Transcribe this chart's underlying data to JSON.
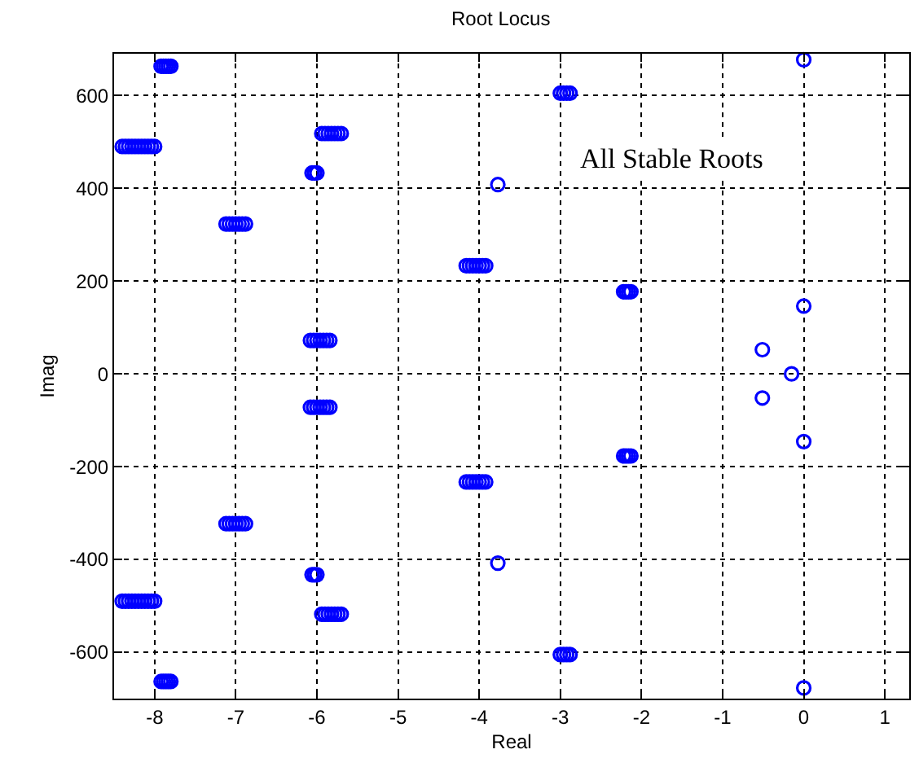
{
  "chart_data": {
    "type": "scatter",
    "title": "Root Locus",
    "xlabel": "Real",
    "ylabel": "Imag",
    "x": [
      -8.4,
      -8.36,
      -8.32,
      -8.28,
      -8.24,
      -8.2,
      -8.16,
      -8.12,
      -8.08,
      -8.04,
      -8.0,
      -7.92,
      -7.89,
      -7.86,
      -7.83,
      -7.8,
      -7.12,
      -7.08,
      -7.04,
      -7.0,
      -6.96,
      -6.92,
      -6.88,
      -6.06,
      -6.03,
      -6.0,
      -5.94,
      -5.9,
      -5.86,
      -5.82,
      -5.78,
      -5.74,
      -5.7,
      -6.08,
      -6.04,
      -6.0,
      -5.96,
      -5.92,
      -5.88,
      -5.84,
      -4.16,
      -4.12,
      -4.08,
      -4.04,
      -4.0,
      -3.96,
      -3.92,
      -3.77,
      -2.22,
      -2.19,
      -2.16,
      -2.13,
      -3.0,
      -2.96,
      -2.92,
      -2.88,
      0,
      0,
      -0.51,
      -0.15,
      -8.4,
      -8.36,
      -8.32,
      -8.28,
      -8.24,
      -8.2,
      -8.16,
      -8.12,
      -8.08,
      -8.04,
      -8.0,
      -7.92,
      -7.89,
      -7.86,
      -7.83,
      -7.8,
      -7.12,
      -7.08,
      -7.04,
      -7.0,
      -6.96,
      -6.92,
      -6.88,
      -6.06,
      -6.03,
      -6.0,
      -5.94,
      -5.9,
      -5.86,
      -5.82,
      -5.78,
      -5.74,
      -5.7,
      -6.08,
      -6.04,
      -6.0,
      -5.96,
      -5.92,
      -5.88,
      -5.84,
      -4.16,
      -4.12,
      -4.08,
      -4.04,
      -4.0,
      -3.96,
      -3.92,
      -3.77,
      -2.22,
      -2.19,
      -2.16,
      -2.13,
      -3.0,
      -2.96,
      -2.92,
      -2.88,
      0,
      0,
      -0.51
    ],
    "values": [
      490,
      490,
      490,
      490,
      490,
      490,
      490,
      490,
      490,
      490,
      490,
      663,
      663,
      663,
      663,
      663,
      323,
      323,
      323,
      323,
      323,
      323,
      323,
      433,
      433,
      433,
      518,
      518,
      518,
      518,
      518,
      518,
      518,
      72,
      72,
      72,
      72,
      72,
      72,
      72,
      233,
      233,
      233,
      233,
      233,
      233,
      233,
      408,
      177,
      177,
      177,
      177,
      605,
      605,
      605,
      605,
      677,
      146,
      52,
      0,
      -490,
      -490,
      -490,
      -490,
      -490,
      -490,
      -490,
      -490,
      -490,
      -490,
      -490,
      -663,
      -663,
      -663,
      -663,
      -663,
      -323,
      -323,
      -323,
      -323,
      -323,
      -323,
      -323,
      -433,
      -433,
      -433,
      -518,
      -518,
      -518,
      -518,
      -518,
      -518,
      -518,
      -72,
      -72,
      -72,
      -72,
      -72,
      -72,
      -72,
      -233,
      -233,
      -233,
      -233,
      -233,
      -233,
      -233,
      -408,
      -177,
      -177,
      -177,
      -177,
      -605,
      -605,
      -605,
      -605,
      -677,
      -146,
      -52
    ],
    "color": "#0000ff",
    "marker": "circle",
    "grid": true,
    "xlim": [
      -8.5,
      1.3
    ],
    "ylim": [
      -700,
      690
    ],
    "xticks": [
      -8,
      -7,
      -6,
      -5,
      -4,
      -3,
      -2,
      -1,
      0,
      1
    ],
    "yticks": [
      -600,
      -400,
      -200,
      0,
      200,
      400,
      600
    ],
    "annotations": [
      "All Stable Roots"
    ]
  }
}
